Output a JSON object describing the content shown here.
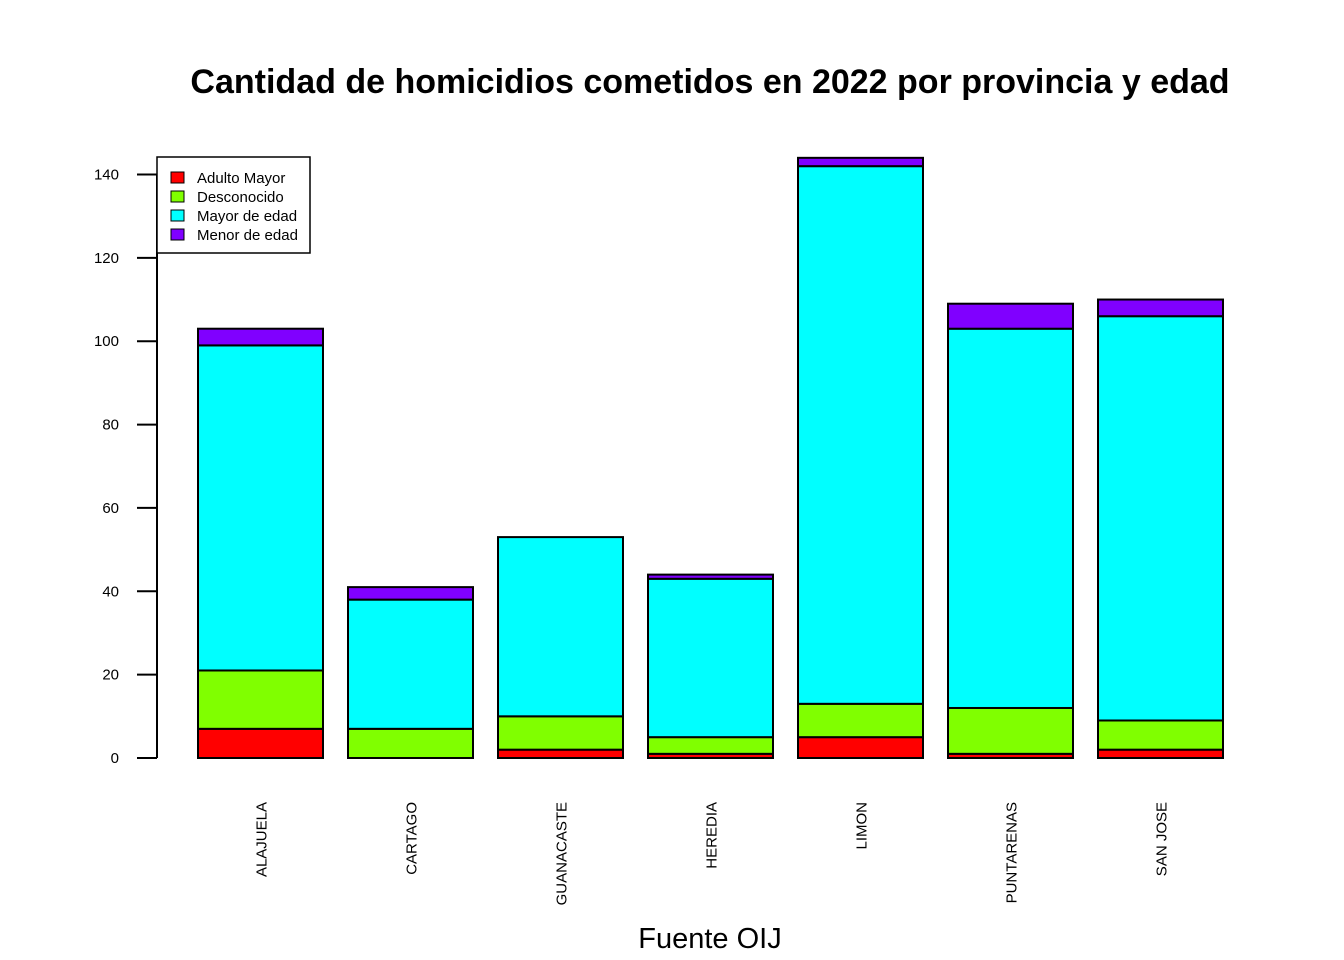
{
  "chart_data": {
    "type": "bar",
    "stacked": true,
    "title": "Cantidad de homicidios cometidos en 2022 por provincia y edad",
    "xlabel": "Fuente OIJ",
    "ylabel": "",
    "ylim": [
      0,
      145
    ],
    "yticks": [
      0,
      20,
      40,
      60,
      80,
      100,
      120,
      140
    ],
    "grid": false,
    "legend_position": "top-left",
    "categories": [
      "ALAJUELA",
      "CARTAGO",
      "GUANACASTE",
      "HEREDIA",
      "LIMON",
      "PUNTARENAS",
      "SAN JOSE"
    ],
    "series": [
      {
        "name": "Adulto Mayor",
        "color": "#ff0000",
        "values": [
          7,
          0,
          2,
          1,
          5,
          1,
          2
        ]
      },
      {
        "name": "Desconocido",
        "color": "#80ff00",
        "values": [
          14,
          7,
          8,
          4,
          8,
          11,
          7
        ]
      },
      {
        "name": "Mayor de edad",
        "color": "#00ffff",
        "values": [
          78,
          31,
          43,
          38,
          129,
          91,
          97
        ]
      },
      {
        "name": "Menor de edad",
        "color": "#8000ff",
        "values": [
          4,
          3,
          0,
          1,
          2,
          6,
          4
        ]
      }
    ]
  }
}
